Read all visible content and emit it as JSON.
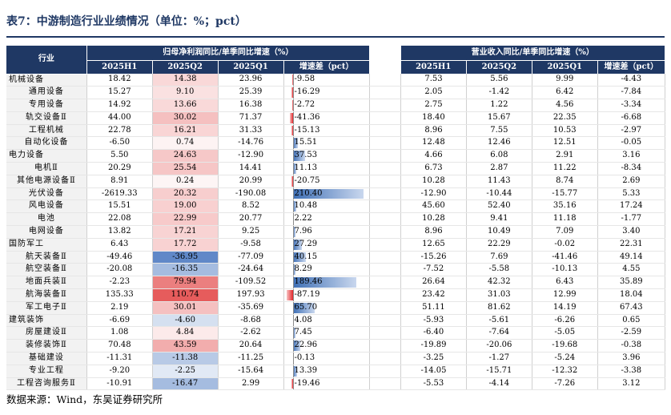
{
  "title": "表7：中游制造行业业绩情况（单位：%；pct）",
  "source": "数据来源：Wind，东吴证券研究所",
  "header": {
    "industry": "行业",
    "group_profit": "归母净利润同比/单季同比增速（%）",
    "group_revenue": "营业收入同比/单季同比增速（%）",
    "cols": [
      "2025H1",
      "2025Q2",
      "2025Q1",
      "增速差（pct）"
    ]
  },
  "colors": {
    "header_bg": "#1f3864",
    "pos_bar": "#3e6fb5",
    "neg_bar": "#e3262a",
    "heat_pos": "#e34a4a",
    "heat_neg": "#4a78c0"
  },
  "rows": [
    {
      "name": "机械设备",
      "cat": true,
      "p": [
        "18.42",
        "14.38",
        "23.96",
        "-9.58"
      ],
      "r": [
        "7.53",
        "5.56",
        "9.99",
        "-4.43"
      ]
    },
    {
      "name": "通用设备",
      "cat": false,
      "p": [
        "15.27",
        "9.10",
        "25.39",
        "-16.29"
      ],
      "r": [
        "2.05",
        "-1.42",
        "6.42",
        "-7.84"
      ]
    },
    {
      "name": "专用设备",
      "cat": false,
      "p": [
        "14.92",
        "13.66",
        "16.38",
        "-2.72"
      ],
      "r": [
        "2.75",
        "1.22",
        "4.56",
        "-3.34"
      ]
    },
    {
      "name": "轨交设备Ⅱ",
      "cat": false,
      "p": [
        "44.00",
        "30.02",
        "71.37",
        "-41.36"
      ],
      "r": [
        "18.40",
        "15.67",
        "22.35",
        "-6.68"
      ]
    },
    {
      "name": "工程机械",
      "cat": false,
      "p": [
        "22.78",
        "16.21",
        "31.33",
        "-15.13"
      ],
      "r": [
        "8.96",
        "7.55",
        "10.53",
        "-2.97"
      ]
    },
    {
      "name": "自动化设备",
      "cat": false,
      "p": [
        "-6.50",
        "0.74",
        "-14.76",
        "15.51"
      ],
      "r": [
        "12.48",
        "12.46",
        "12.51",
        "-0.05"
      ]
    },
    {
      "name": "电力设备",
      "cat": true,
      "p": [
        "5.50",
        "24.63",
        "-12.90",
        "37.53"
      ],
      "r": [
        "4.66",
        "6.08",
        "2.91",
        "3.16"
      ]
    },
    {
      "name": "电机Ⅱ",
      "cat": false,
      "p": [
        "20.29",
        "25.54",
        "14.41",
        "11.13"
      ],
      "r": [
        "6.73",
        "2.87",
        "11.22",
        "-8.34"
      ]
    },
    {
      "name": "其他电源设备Ⅱ",
      "cat": false,
      "p": [
        "8.91",
        "0.24",
        "20.99",
        "-20.75"
      ],
      "r": [
        "10.28",
        "11.43",
        "8.74",
        "2.69"
      ]
    },
    {
      "name": "光伏设备",
      "cat": false,
      "p": [
        "-2619.33",
        "20.32",
        "-190.08",
        "210.40"
      ],
      "r": [
        "-12.90",
        "-10.44",
        "-15.77",
        "5.33"
      ]
    },
    {
      "name": "风电设备",
      "cat": false,
      "p": [
        "15.51",
        "19.00",
        "8.52",
        "10.48"
      ],
      "r": [
        "45.60",
        "52.40",
        "35.16",
        "17.24"
      ]
    },
    {
      "name": "电池",
      "cat": false,
      "p": [
        "22.08",
        "22.99",
        "20.77",
        "2.22"
      ],
      "r": [
        "10.28",
        "9.41",
        "11.18",
        "-1.77"
      ]
    },
    {
      "name": "电网设备",
      "cat": false,
      "p": [
        "13.82",
        "17.21",
        "9.25",
        "7.96"
      ],
      "r": [
        "8.96",
        "10.49",
        "7.09",
        "3.40"
      ]
    },
    {
      "name": "国防军工",
      "cat": true,
      "p": [
        "6.43",
        "17.72",
        "-9.58",
        "27.29"
      ],
      "r": [
        "12.65",
        "22.29",
        "-0.02",
        "22.31"
      ]
    },
    {
      "name": "航天装备Ⅱ",
      "cat": false,
      "p": [
        "-49.46",
        "-36.95",
        "-77.09",
        "40.15"
      ],
      "r": [
        "-15.26",
        "7.69",
        "-41.46",
        "49.14"
      ]
    },
    {
      "name": "航空装备Ⅱ",
      "cat": false,
      "p": [
        "-20.08",
        "-16.35",
        "-24.64",
        "8.29"
      ],
      "r": [
        "-7.52",
        "-5.58",
        "-10.13",
        "4.55"
      ]
    },
    {
      "name": "地面兵装Ⅱ",
      "cat": false,
      "p": [
        "-2.23",
        "79.94",
        "-109.52",
        "189.46"
      ],
      "r": [
        "26.64",
        "42.32",
        "6.43",
        "35.89"
      ]
    },
    {
      "name": "航海装备Ⅱ",
      "cat": false,
      "p": [
        "135.33",
        "110.74",
        "197.93",
        "-87.19"
      ],
      "r": [
        "23.42",
        "31.03",
        "12.99",
        "18.04"
      ]
    },
    {
      "name": "军工电子Ⅱ",
      "cat": false,
      "p": [
        "2.19",
        "30.01",
        "-35.69",
        "65.70"
      ],
      "r": [
        "51.11",
        "81.62",
        "14.19",
        "67.43"
      ]
    },
    {
      "name": "建筑装饰",
      "cat": true,
      "p": [
        "-6.69",
        "-4.60",
        "-8.68",
        "4.08"
      ],
      "r": [
        "-5.93",
        "-5.61",
        "-6.26",
        "0.65"
      ]
    },
    {
      "name": "房屋建设Ⅱ",
      "cat": false,
      "p": [
        "1.08",
        "4.84",
        "-2.62",
        "7.45"
      ],
      "r": [
        "-6.40",
        "-7.64",
        "-5.05",
        "-2.59"
      ]
    },
    {
      "name": "装修装饰Ⅱ",
      "cat": false,
      "p": [
        "70.48",
        "43.59",
        "20.64",
        "22.96"
      ],
      "r": [
        "-19.89",
        "-20.06",
        "-19.68",
        "-0.38"
      ]
    },
    {
      "name": "基础建设",
      "cat": false,
      "p": [
        "-11.31",
        "-11.38",
        "-11.25",
        "-0.13"
      ],
      "r": [
        "-3.25",
        "-1.27",
        "-5.24",
        "3.96"
      ]
    },
    {
      "name": "专业工程",
      "cat": false,
      "p": [
        "-9.20",
        "-2.25",
        "-15.64",
        "13.39"
      ],
      "r": [
        "-14.05",
        "-15.71",
        "-12.32",
        "-3.38"
      ]
    },
    {
      "name": "工程咨询服务Ⅱ",
      "cat": false,
      "p": [
        "-10.91",
        "-16.47",
        "2.99",
        "-19.46"
      ],
      "r": [
        "-5.53",
        "-4.14",
        "-7.26",
        "3.12"
      ]
    }
  ]
}
